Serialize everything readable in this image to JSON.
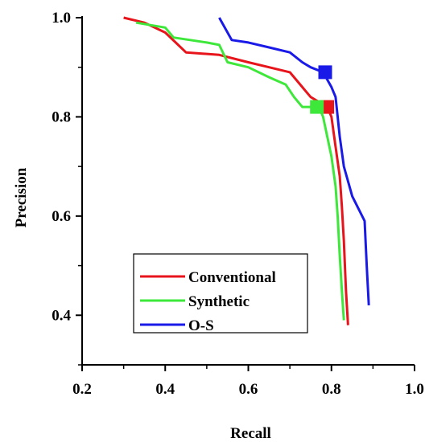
{
  "chart_data": {
    "type": "line",
    "xlabel": "Recall",
    "ylabel": "Precision",
    "xlim": [
      0.2,
      1.0
    ],
    "ylim": [
      0.3,
      1.0
    ],
    "xticks": [
      "0.2",
      "0.4",
      "0.6",
      "0.8",
      "1.0"
    ],
    "yticks": [
      "0.4",
      "0.6",
      "0.8",
      "1.0"
    ],
    "grid": false,
    "legend_position": "bottom-left",
    "series": [
      {
        "name": "Conventional",
        "color": "#e8141b",
        "x": [
          0.3,
          0.35,
          0.4,
          0.45,
          0.53,
          0.6,
          0.65,
          0.7,
          0.73,
          0.75,
          0.77,
          0.79,
          0.8,
          0.81,
          0.82,
          0.825,
          0.83,
          0.835,
          0.84
        ],
        "y": [
          1.0,
          0.99,
          0.97,
          0.93,
          0.925,
          0.91,
          0.9,
          0.89,
          0.86,
          0.84,
          0.83,
          0.82,
          0.8,
          0.74,
          0.68,
          0.62,
          0.55,
          0.45,
          0.38
        ],
        "marker": {
          "x": 0.79,
          "y": 0.82
        }
      },
      {
        "name": "Synthetic",
        "color": "#3ee83a",
        "x": [
          0.33,
          0.4,
          0.42,
          0.5,
          0.53,
          0.55,
          0.6,
          0.65,
          0.69,
          0.71,
          0.73,
          0.76,
          0.77,
          0.78,
          0.79,
          0.8,
          0.81,
          0.815,
          0.82,
          0.825,
          0.83
        ],
        "y": [
          0.99,
          0.98,
          0.96,
          0.95,
          0.945,
          0.91,
          0.9,
          0.88,
          0.865,
          0.84,
          0.82,
          0.82,
          0.82,
          0.8,
          0.76,
          0.72,
          0.66,
          0.6,
          0.52,
          0.45,
          0.39
        ],
        "marker": {
          "x": 0.765,
          "y": 0.82
        }
      },
      {
        "name": "O-S",
        "color": "#1a1ae8",
        "x": [
          0.53,
          0.56,
          0.6,
          0.65,
          0.7,
          0.73,
          0.75,
          0.78,
          0.8,
          0.81,
          0.815,
          0.82,
          0.83,
          0.85,
          0.88,
          0.885,
          0.89
        ],
        "y": [
          1.0,
          0.955,
          0.95,
          0.94,
          0.93,
          0.91,
          0.9,
          0.89,
          0.86,
          0.84,
          0.8,
          0.76,
          0.7,
          0.64,
          0.59,
          0.5,
          0.42
        ],
        "marker": {
          "x": 0.785,
          "y": 0.89
        }
      }
    ]
  }
}
